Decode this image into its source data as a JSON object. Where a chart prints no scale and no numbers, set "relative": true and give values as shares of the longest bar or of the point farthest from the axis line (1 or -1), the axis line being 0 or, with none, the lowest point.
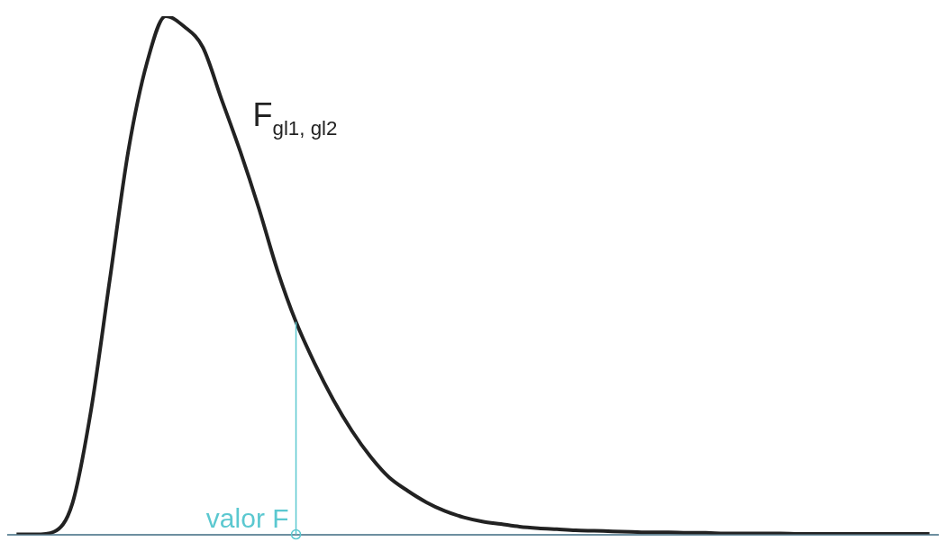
{
  "chart_data": {
    "type": "line",
    "relative": true,
    "legend": false,
    "grid": false,
    "marker": "none",
    "line_style": "solid",
    "categories": [
      null,
      null,
      null,
      null,
      null,
      null,
      null,
      null,
      null,
      null,
      null,
      null,
      null,
      null,
      null,
      null,
      null,
      null,
      null,
      null,
      null,
      null,
      null,
      null,
      null,
      null,
      null,
      null,
      null,
      null,
      null,
      null,
      null,
      null,
      null,
      null,
      null,
      null,
      null,
      null,
      null,
      null,
      null,
      null,
      null,
      null,
      null,
      null,
      null,
      null
    ],
    "series": [
      {
        "name": "F$_{gl1, gl2}$",
        "color": "#222222",
        "values": [
          0,
          0,
          0.005,
          0.06,
          0.24,
          0.49,
          0.74,
          0.91,
          1,
          0.98,
          0.94,
          0.84,
          0.74,
          0.63,
          0.51,
          0.41,
          0.33,
          0.26,
          0.2,
          0.15,
          0.11,
          0.084,
          0.062,
          0.045,
          0.033,
          0.025,
          0.02,
          0.015,
          0.012,
          0.01,
          0.008,
          0.007,
          0.006,
          0.005,
          0.004,
          0.004,
          0.003,
          0.003,
          0.002,
          0.002,
          0.002,
          0.002,
          0.001,
          0.001,
          0.001,
          0.001,
          0.001,
          0.001,
          0.001,
          0.001
        ]
      }
    ],
    "annotations": [
      "valor F"
    ]
  }
}
